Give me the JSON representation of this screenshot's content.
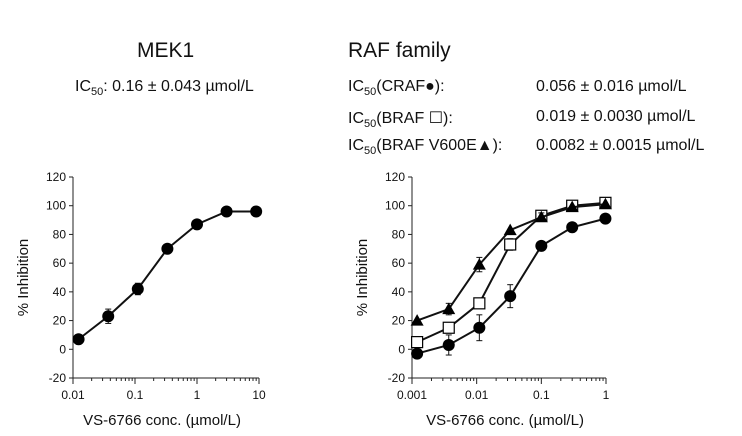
{
  "chart_data": [
    {
      "type": "line",
      "title": "MEK1",
      "subtitle_prefix": "IC",
      "subtitle_sub": "50",
      "subtitle_text": ": 0.16 ± 0.043 µmol/L",
      "xlabel": "VS-6766 conc. (µmol/L)",
      "ylabel": "% Inhibition",
      "xscale": "log",
      "xlim": [
        0.01,
        10
      ],
      "ylim": [
        -20,
        120
      ],
      "xticks": [
        0.01,
        0.1,
        1,
        10
      ],
      "xticklabels": [
        "0.01",
        "0.1",
        "1",
        "10"
      ],
      "yticks": [
        -20,
        0,
        20,
        40,
        60,
        80,
        100,
        120
      ],
      "yticklabels": [
        "-20",
        "0",
        "20",
        "40",
        "60",
        "80",
        "100",
        "120"
      ],
      "series": [
        {
          "marker": "filled-circle",
          "x": [
            0.0123,
            0.037,
            0.111,
            0.333,
            1,
            3,
            9
          ],
          "y": [
            7,
            23,
            42,
            70,
            87,
            96,
            96
          ],
          "err": [
            0,
            5,
            4,
            0,
            0,
            0,
            0
          ]
        }
      ]
    },
    {
      "type": "line",
      "title": "RAF family",
      "xlabel": "VS-6766 conc. (µmol/L)",
      "ylabel": "% Inhibition",
      "xscale": "log",
      "xlim": [
        0.001,
        1
      ],
      "ylim": [
        -20,
        120
      ],
      "xticks": [
        0.001,
        0.01,
        0.1,
        1
      ],
      "xticklabels": [
        "0.001",
        "0.01",
        "0.1",
        "1"
      ],
      "yticks": [
        -20,
        0,
        20,
        40,
        60,
        80,
        100,
        120
      ],
      "yticklabels": [
        "-20",
        "0",
        "20",
        "40",
        "60",
        "80",
        "100",
        "120"
      ],
      "ic50_lines": [
        {
          "prefix": "IC",
          "sub": "50",
          "label": "(CRAF●):",
          "value": "0.056 ± 0.016 µmol/L"
        },
        {
          "prefix": "IC",
          "sub": "50",
          "label": "(BRAF ☐):",
          "value": "0.019 ± 0.0030 µmol/L"
        },
        {
          "prefix": "IC",
          "sub": "50",
          "label": "(BRAF V600E▲):",
          "value": "0.0082 ± 0.0015 µmol/L"
        }
      ],
      "series": [
        {
          "marker": "filled-circle",
          "x": [
            0.0012,
            0.0037,
            0.011,
            0.033,
            0.1,
            0.3,
            0.98
          ],
          "y": [
            -3,
            3,
            15,
            37,
            72,
            85,
            91
          ],
          "err": [
            0,
            7,
            9,
            8,
            0,
            0,
            0
          ]
        },
        {
          "marker": "open-square",
          "x": [
            0.0012,
            0.0037,
            0.011,
            0.033,
            0.1,
            0.3,
            0.98
          ],
          "y": [
            5,
            15,
            32,
            73,
            93,
            100,
            102
          ],
          "err": [
            0,
            0,
            3,
            4,
            3,
            2,
            1
          ]
        },
        {
          "marker": "filled-triangle",
          "x": [
            0.0012,
            0.0037,
            0.011,
            0.033,
            0.1,
            0.3,
            0.98
          ],
          "y": [
            20,
            28,
            59,
            83,
            92,
            99,
            101
          ],
          "err": [
            0,
            4,
            5,
            0,
            3,
            0,
            0
          ]
        }
      ]
    }
  ]
}
